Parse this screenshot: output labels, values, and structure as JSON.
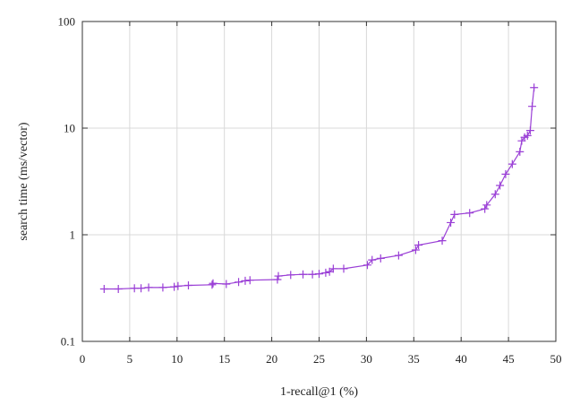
{
  "chart_data": {
    "type": "line",
    "title": "",
    "xlabel": "1-recall@1 (%)",
    "ylabel": "search time (ms/vector)",
    "xlim": [
      0,
      50
    ],
    "ylim": [
      0.1,
      100
    ],
    "yscale": "log",
    "grid": true,
    "legend": "none",
    "x_ticks": [
      "0",
      "5",
      "10",
      "15",
      "20",
      "25",
      "30",
      "35",
      "40",
      "45",
      "50"
    ],
    "y_ticks": [
      "0.1",
      "1",
      "10",
      "100"
    ],
    "colors": {
      "series": "#9a3fd6",
      "grid": "#d9d9d9",
      "frame": "#333333"
    },
    "marker": "plus",
    "series": [
      {
        "x": [
          2.3,
          3.8,
          5.5,
          6.2,
          7.0,
          8.5,
          9.7,
          10.1,
          11.2,
          13.7,
          13.8,
          15.2,
          16.5,
          17.2,
          17.7,
          20.6,
          20.7,
          22.0,
          23.3,
          24.3,
          25.0,
          25.7,
          26.1,
          26.5,
          27.6,
          30.1,
          30.6,
          31.5,
          33.4,
          35.2,
          35.5,
          38.0,
          38.9,
          39.3,
          40.9,
          42.5,
          42.7,
          43.6,
          44.1,
          44.7,
          45.4,
          46.2,
          46.4,
          46.7,
          47.0,
          47.3,
          47.5,
          47.7
        ],
        "y": [
          0.31,
          0.31,
          0.315,
          0.315,
          0.32,
          0.32,
          0.325,
          0.33,
          0.335,
          0.34,
          0.35,
          0.345,
          0.36,
          0.37,
          0.375,
          0.38,
          0.41,
          0.42,
          0.425,
          0.425,
          0.43,
          0.44,
          0.45,
          0.48,
          0.48,
          0.52,
          0.58,
          0.6,
          0.64,
          0.72,
          0.8,
          0.88,
          1.3,
          1.55,
          1.6,
          1.75,
          1.9,
          2.4,
          2.9,
          3.7,
          4.6,
          6.0,
          7.6,
          8.2,
          8.5,
          9.5,
          16.0,
          24.0
        ]
      }
    ]
  }
}
